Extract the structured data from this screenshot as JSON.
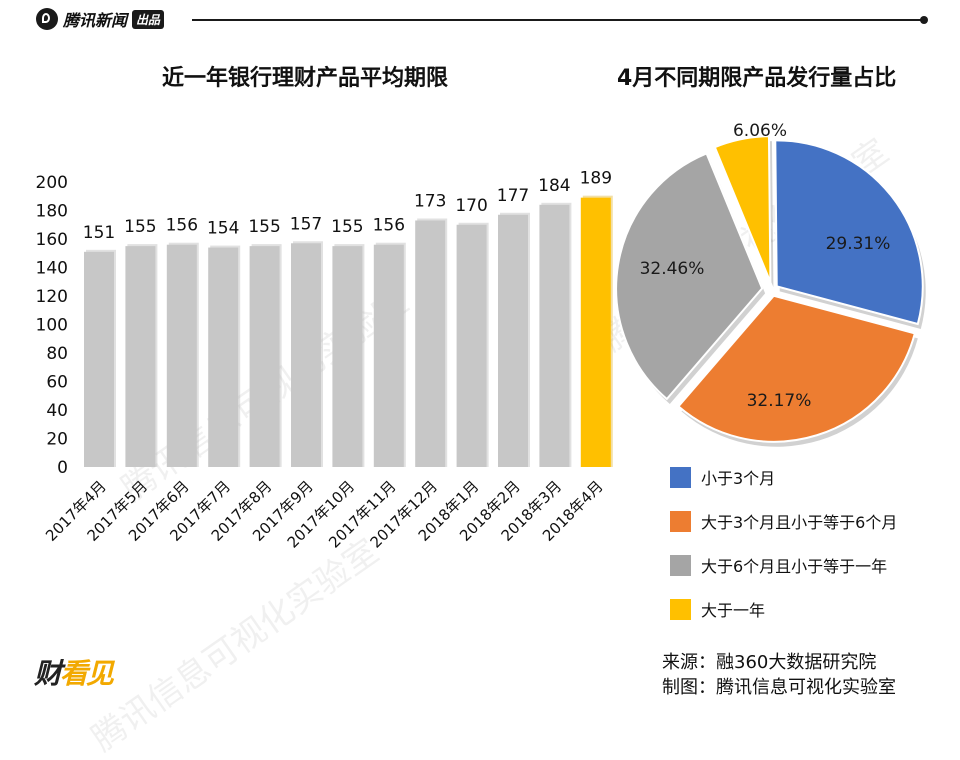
{
  "header": {
    "brand_name": "腾讯新闻",
    "brand_badge": "出品"
  },
  "footer": {
    "logo_main": "财",
    "logo_accent": "看见",
    "source": "来源：融360大数据研究院",
    "made_by": "制图：腾讯信息可视化实验室"
  },
  "watermark_text": "腾讯信息可视化实验室",
  "colors": {
    "bar": "#c7c7c7",
    "bar_highlight": "#ffc000",
    "pie_blue": "#4472c4",
    "pie_orange": "#ed7d31",
    "pie_gray": "#a5a5a5",
    "pie_yellow": "#ffc000"
  },
  "chart_data": [
    {
      "type": "bar",
      "title": "近一年银行理财产品平均期限",
      "categories": [
        "2017年4月",
        "2017年5月",
        "2017年6月",
        "2017年7月",
        "2017年8月",
        "2017年9月",
        "2017年10月",
        "2017年11月",
        "2017年12月",
        "2018年1月",
        "2018年2月",
        "2018年3月",
        "2018年4月"
      ],
      "values": [
        151,
        155,
        156,
        154,
        155,
        157,
        155,
        156,
        173,
        170,
        177,
        184,
        189
      ],
      "ylim": [
        0,
        200
      ],
      "yticks": [
        0,
        20,
        40,
        60,
        80,
        100,
        120,
        140,
        160,
        180,
        200
      ],
      "highlight_index": 12,
      "xlabel": "",
      "ylabel": ""
    },
    {
      "type": "pie",
      "title": "4月不同期限产品发行量占比",
      "labels": [
        "小于3个月",
        "大于3个月且小于等于6个月",
        "大于6个月且小于等于一年",
        "大于一年"
      ],
      "values": [
        29.31,
        32.17,
        32.46,
        6.06
      ],
      "value_labels": [
        "29.31%",
        "32.17%",
        "32.46%",
        "6.06%"
      ],
      "colors": [
        "#4472c4",
        "#ed7d31",
        "#a5a5a5",
        "#ffc000"
      ],
      "legend_position": "bottom"
    }
  ]
}
